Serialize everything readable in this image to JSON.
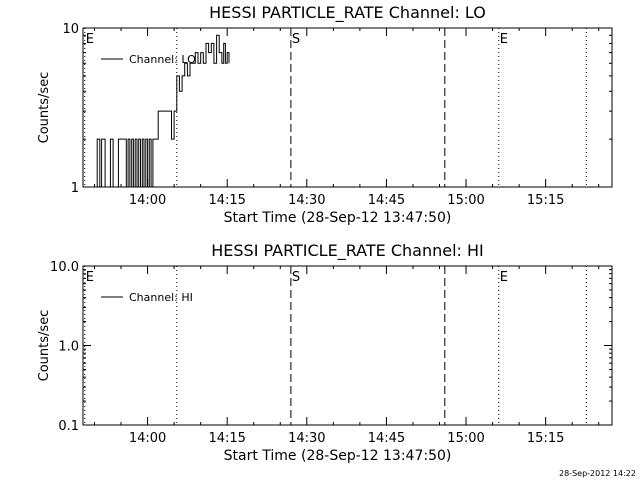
{
  "footer": {
    "timestamp": "28-Sep-2012 14:22"
  },
  "chart_data": [
    {
      "type": "line",
      "title": "HESSI PARTICLE_RATE Channel: LO",
      "xlabel": "Start Time (28-Sep-12 13:47:50)",
      "ylabel": "Counts/sec",
      "y_scale": "log",
      "ylim": [
        1,
        10
      ],
      "y_ticks": [
        {
          "value": 1,
          "label": "1"
        },
        {
          "value": 10,
          "label": "10"
        }
      ],
      "xlim": [
        "13:47:50",
        "15:27:30"
      ],
      "x_ticks": [
        {
          "value": "14:00",
          "label": "14:00"
        },
        {
          "value": "14:15",
          "label": "14:15"
        },
        {
          "value": "14:30",
          "label": "14:30"
        },
        {
          "value": "14:45",
          "label": "14:45"
        },
        {
          "value": "15:00",
          "label": "15:00"
        },
        {
          "value": "15:15",
          "label": "15:15"
        }
      ],
      "grid": false,
      "legend_position": "top-left",
      "markers": [
        {
          "time": "13:48:10",
          "style": "dotted",
          "label": "E"
        },
        {
          "time": "14:05:30",
          "style": "dotted",
          "label": ""
        },
        {
          "time": "14:27:00",
          "style": "dashed",
          "label": "S"
        },
        {
          "time": "14:56:00",
          "style": "dashed",
          "label": ""
        },
        {
          "time": "15:06:10",
          "style": "dotted",
          "label": "E"
        },
        {
          "time": "15:22:40",
          "style": "dotted",
          "label": ""
        }
      ],
      "series": [
        {
          "name": "Channel: LO",
          "points": [
            [
              "13:50:00",
              1
            ],
            [
              "13:50:30",
              2
            ],
            [
              "13:51:00",
              1
            ],
            [
              "13:51:20",
              2
            ],
            [
              "13:52:00",
              1
            ],
            [
              "13:52:30",
              1
            ],
            [
              "13:53:00",
              2
            ],
            [
              "13:53:30",
              1
            ],
            [
              "13:54:00",
              1
            ],
            [
              "13:54:30",
              2
            ],
            [
              "13:55:00",
              2
            ],
            [
              "13:55:30",
              2
            ],
            [
              "13:56:00",
              1
            ],
            [
              "13:56:20",
              2
            ],
            [
              "13:56:40",
              1
            ],
            [
              "13:57:00",
              2
            ],
            [
              "13:57:20",
              1
            ],
            [
              "13:57:40",
              2
            ],
            [
              "13:58:00",
              1
            ],
            [
              "13:58:20",
              2
            ],
            [
              "13:58:40",
              1
            ],
            [
              "13:59:00",
              2
            ],
            [
              "13:59:20",
              1
            ],
            [
              "13:59:40",
              2
            ],
            [
              "14:00:00",
              1
            ],
            [
              "14:00:20",
              2
            ],
            [
              "14:00:40",
              1
            ],
            [
              "14:01:00",
              2
            ],
            [
              "14:01:30",
              2
            ],
            [
              "14:02:00",
              3
            ],
            [
              "14:02:30",
              3
            ],
            [
              "14:03:00",
              3
            ],
            [
              "14:04:00",
              3
            ],
            [
              "14:04:30",
              2
            ],
            [
              "14:05:00",
              3
            ],
            [
              "14:05:30",
              5
            ],
            [
              "14:06:00",
              4
            ],
            [
              "14:06:30",
              5
            ],
            [
              "14:07:00",
              6
            ],
            [
              "14:07:30",
              5
            ],
            [
              "14:08:00",
              6
            ],
            [
              "14:08:30",
              6
            ],
            [
              "14:09:00",
              7
            ],
            [
              "14:09:30",
              6
            ],
            [
              "14:10:00",
              7
            ],
            [
              "14:10:30",
              6
            ],
            [
              "14:11:00",
              8
            ],
            [
              "14:11:30",
              7
            ],
            [
              "14:12:00",
              8
            ],
            [
              "14:12:30",
              6
            ],
            [
              "14:13:00",
              9
            ],
            [
              "14:13:30",
              7
            ],
            [
              "14:14:00",
              6
            ],
            [
              "14:14:20",
              8
            ],
            [
              "14:14:40",
              6
            ],
            [
              "14:15:00",
              7
            ],
            [
              "14:15:20",
              6
            ]
          ]
        }
      ]
    },
    {
      "type": "line",
      "title": "HESSI PARTICLE_RATE Channel: HI",
      "xlabel": "Start Time (28-Sep-12 13:47:50)",
      "ylabel": "Counts/sec",
      "y_scale": "log",
      "ylim": [
        0.1,
        10
      ],
      "y_ticks": [
        {
          "value": 0.1,
          "label": "0.1"
        },
        {
          "value": 1,
          "label": "1.0"
        },
        {
          "value": 10,
          "label": "10.0"
        }
      ],
      "xlim": [
        "13:47:50",
        "15:27:30"
      ],
      "x_ticks": [
        {
          "value": "14:00",
          "label": "14:00"
        },
        {
          "value": "14:15",
          "label": "14:15"
        },
        {
          "value": "14:30",
          "label": "14:30"
        },
        {
          "value": "14:45",
          "label": "14:45"
        },
        {
          "value": "15:00",
          "label": "15:00"
        },
        {
          "value": "15:15",
          "label": "15:15"
        }
      ],
      "grid": false,
      "legend_position": "top-left",
      "markers": [
        {
          "time": "13:48:10",
          "style": "dotted",
          "label": "E"
        },
        {
          "time": "14:05:30",
          "style": "dotted",
          "label": ""
        },
        {
          "time": "14:27:00",
          "style": "dashed",
          "label": "S"
        },
        {
          "time": "14:56:00",
          "style": "dashed",
          "label": ""
        },
        {
          "time": "15:06:10",
          "style": "dotted",
          "label": "E"
        },
        {
          "time": "15:22:40",
          "style": "dotted",
          "label": ""
        }
      ],
      "series": [
        {
          "name": "Channel: HI",
          "points": []
        }
      ]
    }
  ]
}
